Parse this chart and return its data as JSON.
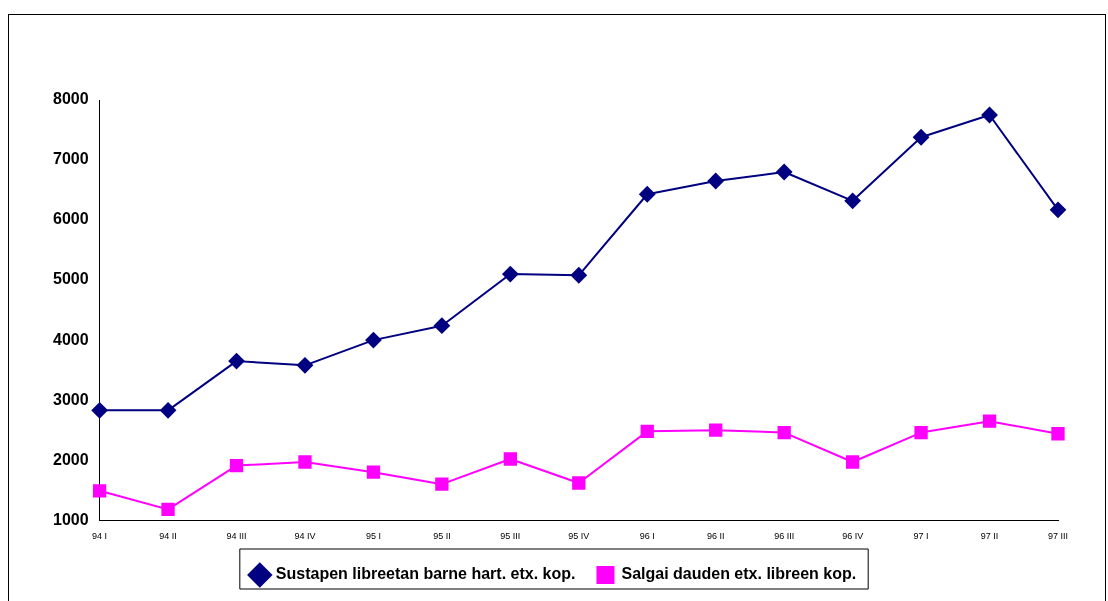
{
  "chart_data": {
    "type": "line",
    "categories": [
      "94 I",
      "94 II",
      "94 III",
      "94 IV",
      "95 I",
      "95 II",
      "95 III",
      "95 IV",
      "96 I",
      "96 II",
      "96 III",
      "96 IV",
      "97 I",
      "97 II",
      "97 III"
    ],
    "series": [
      {
        "name": "Sustapen libreetan barne hart. etx. kop.",
        "color": "#000080",
        "marker": "diamond",
        "values": [
          2830,
          2830,
          3650,
          3580,
          4000,
          4240,
          5100,
          5080,
          6430,
          6650,
          6800,
          6320,
          7380,
          7750,
          6170
        ]
      },
      {
        "name": "Salgai dauden etx. libreen kop.",
        "color": "#ff00ff",
        "marker": "square",
        "values": [
          1490,
          1180,
          1910,
          1970,
          1800,
          1600,
          2020,
          1620,
          2480,
          2500,
          2460,
          1970,
          2460,
          2650,
          2440
        ]
      }
    ],
    "ylim": [
      1000,
      8000
    ],
    "yticks": [
      1000,
      2000,
      3000,
      4000,
      5000,
      6000,
      7000,
      8000
    ],
    "grid": false,
    "legend": "bottom",
    "line_style": "solid"
  }
}
